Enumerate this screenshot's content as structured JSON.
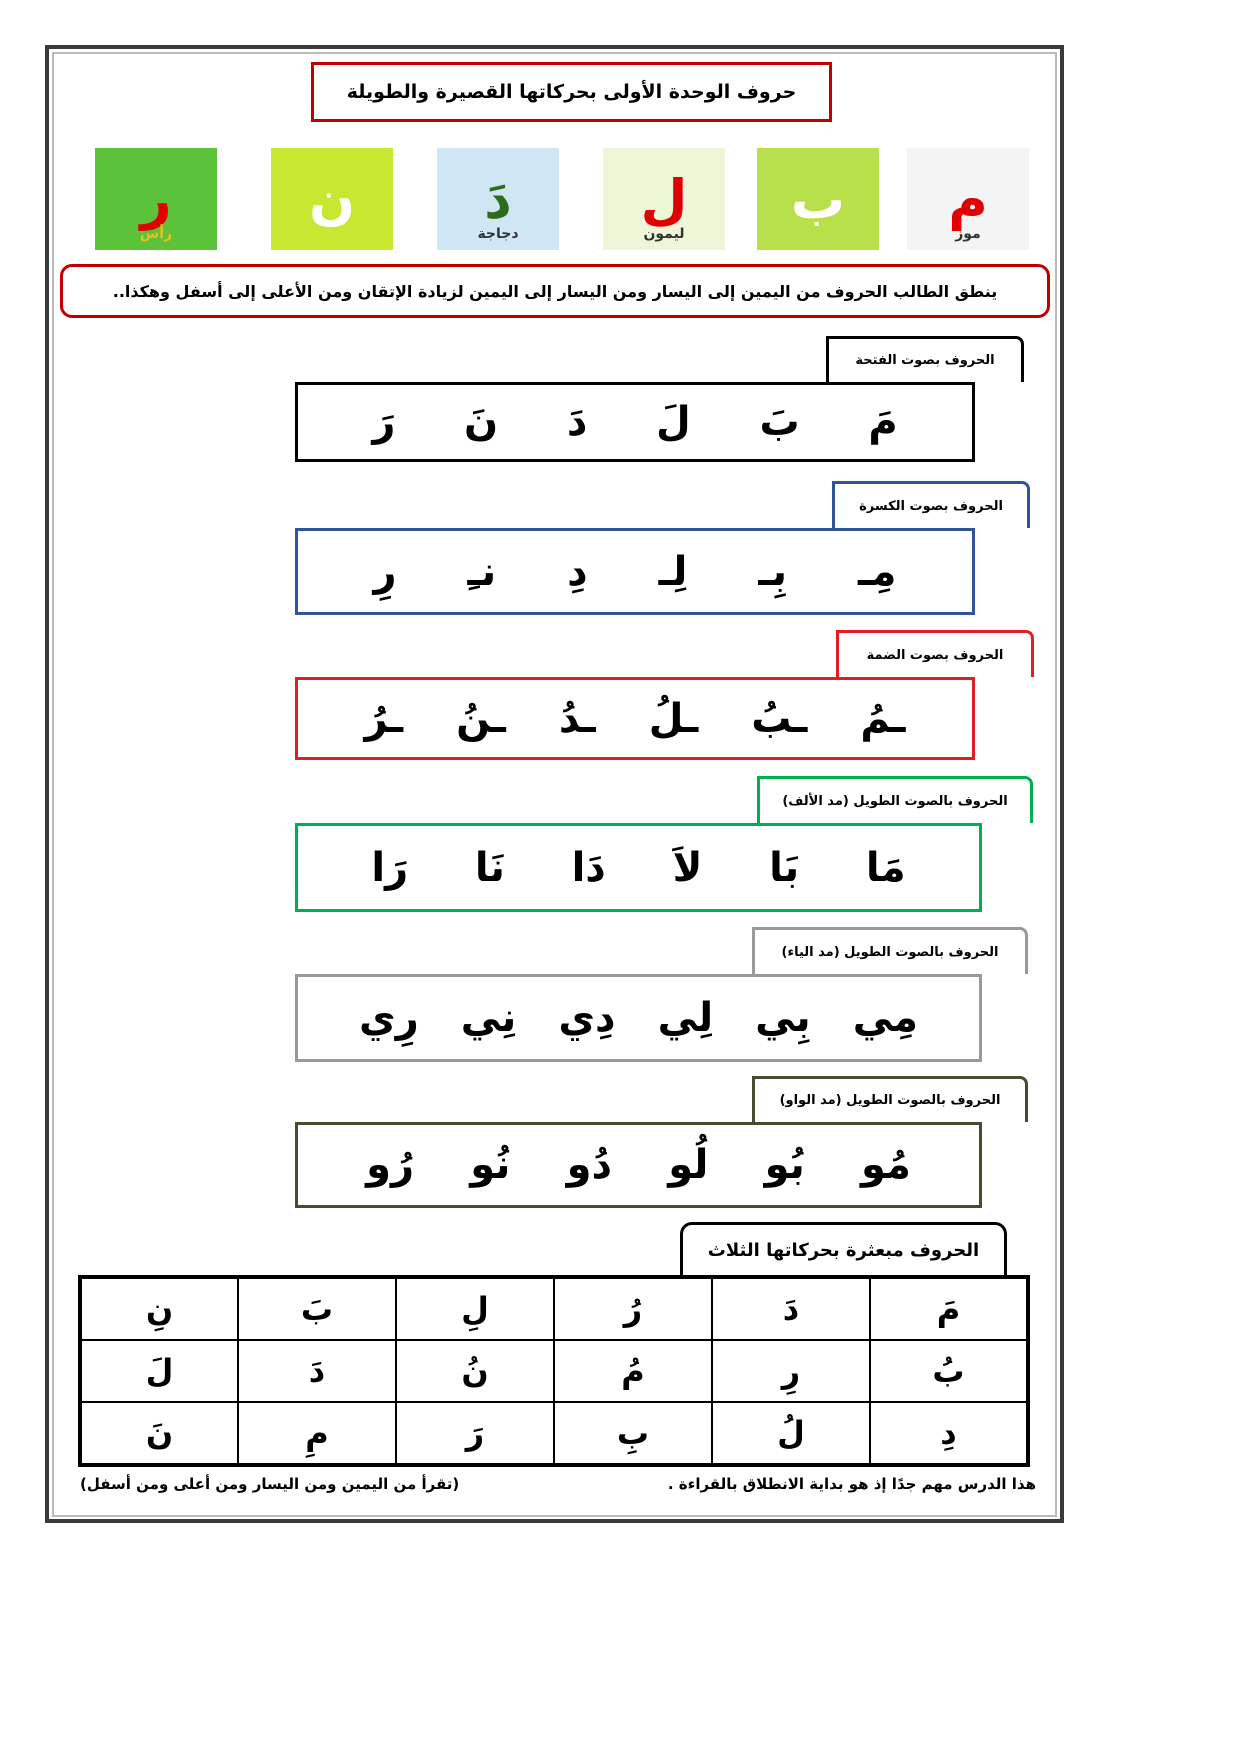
{
  "title": "حروف الوحدة الأولى بحركاتها القصيرة والطويلة",
  "pictures": [
    {
      "letter": "م",
      "word": "موز",
      "bg": "#f4f4f4",
      "color": "#e00000"
    },
    {
      "letter": "ب",
      "word": "",
      "bg": "#b8e04a",
      "color": "#ffffff"
    },
    {
      "letter": "ل",
      "word": "ليمون",
      "bg": "#eef6d8",
      "color": "#e00000"
    },
    {
      "letter": "دَ",
      "word": "دجاجة",
      "bg": "#cfe6f4",
      "color": "#2e6b1a"
    },
    {
      "letter": "ن",
      "word": "",
      "bg": "#c6e830",
      "color": "#ffffff"
    },
    {
      "letter": "ر",
      "word": "رأس",
      "bg": "#5cc23a",
      "color": "#e00000"
    }
  ],
  "instruction": "ينطق الطالب الحروف من اليمين إلى اليسار ومن اليسار إلى اليمين لزيادة الإتقان ومن الأعلى إلى أسفل وهكذا..",
  "sections": [
    {
      "label": "الحروف بصوت الفتحة",
      "color": "#000000",
      "letters": [
        "مَ",
        "بَ",
        "لَ",
        "دَ",
        "نَ",
        "رَ"
      ]
    },
    {
      "label": "الحروف بصوت الكسرة",
      "color": "#2f5597",
      "letters": [
        "مِـ",
        "بِـ",
        "لِـ",
        "دِ",
        "نـِ",
        "رِ"
      ]
    },
    {
      "label": "الحروف بصوت الضمة",
      "color": "#e02020",
      "letters": [
        "ـمُ",
        "ـبُ",
        "ـلُ",
        "ـدُ",
        "ـنُ",
        "ـرُ"
      ]
    },
    {
      "label": "الحروف بالصوت الطويل (مد الألف)",
      "color": "#00b050",
      "letters": [
        "مَا",
        "بَا",
        "لاَ",
        "دَا",
        "نَا",
        "رَا"
      ]
    },
    {
      "label": "الحروف بالصوت الطويل (مد الياء)",
      "color": "#999999",
      "letters": [
        "مِي",
        "بِي",
        "لِي",
        "دِي",
        "نِي",
        "رِي"
      ]
    },
    {
      "label": "الحروف بالصوت الطويل (مد الواو)",
      "color": "#4a4a2e",
      "letters": [
        "مُو",
        "بُو",
        "لُو",
        "دُو",
        "نُو",
        "رُو"
      ]
    }
  ],
  "scattered": {
    "label": "الحروف مبعثرة بحركاتها الثلاث",
    "rows": [
      [
        "مَ",
        "دَ",
        "رُ",
        "لِ",
        "بَ",
        "نِ"
      ],
      [
        "بُ",
        "رِ",
        "مُ",
        "نُ",
        "دَ",
        "لَ"
      ],
      [
        "دِ",
        "لُ",
        "بِ",
        "رَ",
        "مِ",
        "نَ"
      ]
    ]
  },
  "footer": {
    "right": "هذا الدرس مهم جدًا إذ هو بداية الانطلاق بالقراءة .",
    "left": "(تقرأ من اليمين ومن اليسار ومن أعلى ومن أسفل)"
  }
}
